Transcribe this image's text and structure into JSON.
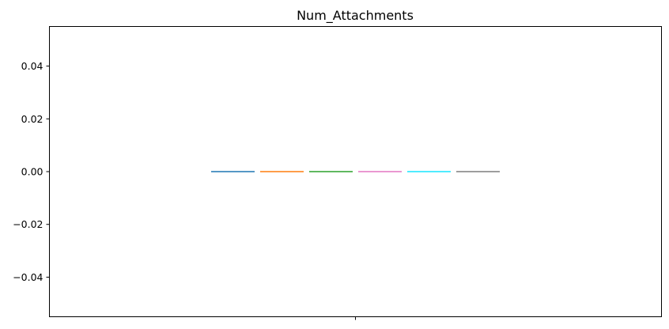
{
  "chart_data": {
    "type": "bar",
    "title": "Num_Attachments",
    "xlabel": "",
    "ylabel": "",
    "ylim": [
      -0.055,
      0.055
    ],
    "y_ticks": [
      0.04,
      0.02,
      0.0,
      -0.02,
      -0.04
    ],
    "y_tick_labels": [
      "0.04",
      "0.02",
      "0.00",
      "−0.02",
      "−0.04"
    ],
    "x_tick_labels": [
      ""
    ],
    "grid": false,
    "legend": "none",
    "series": [
      {
        "values": [
          0
        ],
        "color": "#1f77b4"
      },
      {
        "values": [
          0
        ],
        "color": "#ff7f0e"
      },
      {
        "values": [
          0
        ],
        "color": "#2ca02c"
      },
      {
        "values": [
          0
        ],
        "color": "#e377c2"
      },
      {
        "values": [
          0
        ],
        "color": "#17e6ff"
      },
      {
        "values": [
          0
        ],
        "color": "#7f7f7f"
      }
    ]
  }
}
